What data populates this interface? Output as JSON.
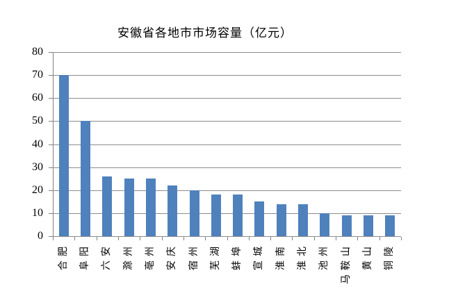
{
  "chart_data": {
    "type": "bar",
    "title": "安徽省各地市市场容量（亿元）",
    "categories": [
      "合肥",
      "阜阳",
      "六安",
      "滁州",
      "亳州",
      "安庆",
      "宿州",
      "芜湖",
      "蚌埠",
      "宣城",
      "淮南",
      "淮北",
      "池州",
      "马鞍山",
      "黄山",
      "铜陵"
    ],
    "values": [
      70,
      50,
      26,
      25,
      25,
      22,
      20,
      18,
      18,
      15,
      14,
      14,
      10,
      9,
      9,
      9
    ],
    "xlabel": "",
    "ylabel": "",
    "ylim": [
      0,
      80
    ],
    "yticks": [
      0,
      10,
      20,
      30,
      40,
      50,
      60,
      70,
      80
    ],
    "grid": "horizontal",
    "legend": "none",
    "bar_color": "#4F81BD",
    "gridline_color": "#8C8C8C",
    "axis_color": "#808080",
    "text_color": "#000000",
    "background": "#FFFFFF"
  }
}
